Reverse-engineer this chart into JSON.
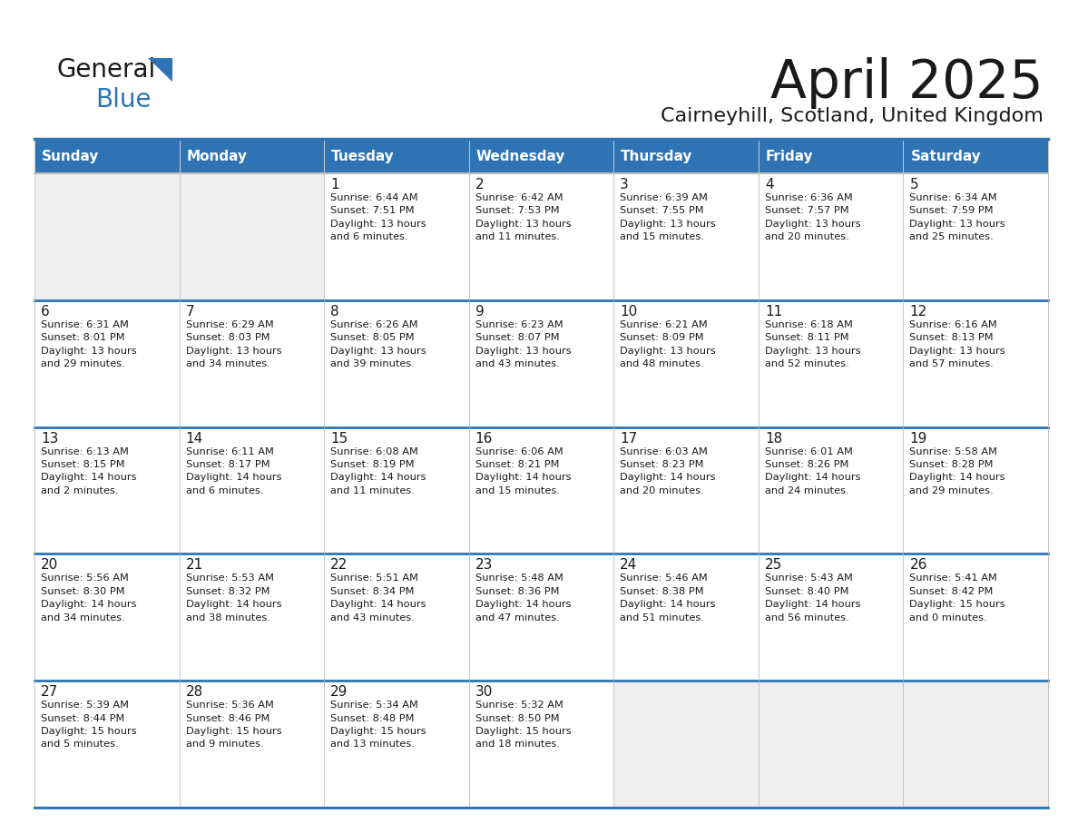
{
  "title": "April 2025",
  "subtitle": "Cairneyhill, Scotland, United Kingdom",
  "header_bg_color": "#2E74B5",
  "header_text_color": "#FFFFFF",
  "cell_bg_white": "#FFFFFF",
  "cell_bg_gray": "#EFEFEF",
  "border_color_dark": "#2E74B5",
  "border_color_light": "#CCCCCC",
  "text_color": "#1a1a1a",
  "days_of_week": [
    "Sunday",
    "Monday",
    "Tuesday",
    "Wednesday",
    "Thursday",
    "Friday",
    "Saturday"
  ],
  "calendar_data": [
    [
      {
        "day": "",
        "info": "",
        "empty": true
      },
      {
        "day": "",
        "info": "",
        "empty": true
      },
      {
        "day": "1",
        "info": "Sunrise: 6:44 AM\nSunset: 7:51 PM\nDaylight: 13 hours\nand 6 minutes.",
        "empty": false
      },
      {
        "day": "2",
        "info": "Sunrise: 6:42 AM\nSunset: 7:53 PM\nDaylight: 13 hours\nand 11 minutes.",
        "empty": false
      },
      {
        "day": "3",
        "info": "Sunrise: 6:39 AM\nSunset: 7:55 PM\nDaylight: 13 hours\nand 15 minutes.",
        "empty": false
      },
      {
        "day": "4",
        "info": "Sunrise: 6:36 AM\nSunset: 7:57 PM\nDaylight: 13 hours\nand 20 minutes.",
        "empty": false
      },
      {
        "day": "5",
        "info": "Sunrise: 6:34 AM\nSunset: 7:59 PM\nDaylight: 13 hours\nand 25 minutes.",
        "empty": false
      }
    ],
    [
      {
        "day": "6",
        "info": "Sunrise: 6:31 AM\nSunset: 8:01 PM\nDaylight: 13 hours\nand 29 minutes.",
        "empty": false
      },
      {
        "day": "7",
        "info": "Sunrise: 6:29 AM\nSunset: 8:03 PM\nDaylight: 13 hours\nand 34 minutes.",
        "empty": false
      },
      {
        "day": "8",
        "info": "Sunrise: 6:26 AM\nSunset: 8:05 PM\nDaylight: 13 hours\nand 39 minutes.",
        "empty": false
      },
      {
        "day": "9",
        "info": "Sunrise: 6:23 AM\nSunset: 8:07 PM\nDaylight: 13 hours\nand 43 minutes.",
        "empty": false
      },
      {
        "day": "10",
        "info": "Sunrise: 6:21 AM\nSunset: 8:09 PM\nDaylight: 13 hours\nand 48 minutes.",
        "empty": false
      },
      {
        "day": "11",
        "info": "Sunrise: 6:18 AM\nSunset: 8:11 PM\nDaylight: 13 hours\nand 52 minutes.",
        "empty": false
      },
      {
        "day": "12",
        "info": "Sunrise: 6:16 AM\nSunset: 8:13 PM\nDaylight: 13 hours\nand 57 minutes.",
        "empty": false
      }
    ],
    [
      {
        "day": "13",
        "info": "Sunrise: 6:13 AM\nSunset: 8:15 PM\nDaylight: 14 hours\nand 2 minutes.",
        "empty": false
      },
      {
        "day": "14",
        "info": "Sunrise: 6:11 AM\nSunset: 8:17 PM\nDaylight: 14 hours\nand 6 minutes.",
        "empty": false
      },
      {
        "day": "15",
        "info": "Sunrise: 6:08 AM\nSunset: 8:19 PM\nDaylight: 14 hours\nand 11 minutes.",
        "empty": false
      },
      {
        "day": "16",
        "info": "Sunrise: 6:06 AM\nSunset: 8:21 PM\nDaylight: 14 hours\nand 15 minutes.",
        "empty": false
      },
      {
        "day": "17",
        "info": "Sunrise: 6:03 AM\nSunset: 8:23 PM\nDaylight: 14 hours\nand 20 minutes.",
        "empty": false
      },
      {
        "day": "18",
        "info": "Sunrise: 6:01 AM\nSunset: 8:26 PM\nDaylight: 14 hours\nand 24 minutes.",
        "empty": false
      },
      {
        "day": "19",
        "info": "Sunrise: 5:58 AM\nSunset: 8:28 PM\nDaylight: 14 hours\nand 29 minutes.",
        "empty": false
      }
    ],
    [
      {
        "day": "20",
        "info": "Sunrise: 5:56 AM\nSunset: 8:30 PM\nDaylight: 14 hours\nand 34 minutes.",
        "empty": false
      },
      {
        "day": "21",
        "info": "Sunrise: 5:53 AM\nSunset: 8:32 PM\nDaylight: 14 hours\nand 38 minutes.",
        "empty": false
      },
      {
        "day": "22",
        "info": "Sunrise: 5:51 AM\nSunset: 8:34 PM\nDaylight: 14 hours\nand 43 minutes.",
        "empty": false
      },
      {
        "day": "23",
        "info": "Sunrise: 5:48 AM\nSunset: 8:36 PM\nDaylight: 14 hours\nand 47 minutes.",
        "empty": false
      },
      {
        "day": "24",
        "info": "Sunrise: 5:46 AM\nSunset: 8:38 PM\nDaylight: 14 hours\nand 51 minutes.",
        "empty": false
      },
      {
        "day": "25",
        "info": "Sunrise: 5:43 AM\nSunset: 8:40 PM\nDaylight: 14 hours\nand 56 minutes.",
        "empty": false
      },
      {
        "day": "26",
        "info": "Sunrise: 5:41 AM\nSunset: 8:42 PM\nDaylight: 15 hours\nand 0 minutes.",
        "empty": false
      }
    ],
    [
      {
        "day": "27",
        "info": "Sunrise: 5:39 AM\nSunset: 8:44 PM\nDaylight: 15 hours\nand 5 minutes.",
        "empty": false
      },
      {
        "day": "28",
        "info": "Sunrise: 5:36 AM\nSunset: 8:46 PM\nDaylight: 15 hours\nand 9 minutes.",
        "empty": false
      },
      {
        "day": "29",
        "info": "Sunrise: 5:34 AM\nSunset: 8:48 PM\nDaylight: 15 hours\nand 13 minutes.",
        "empty": false
      },
      {
        "day": "30",
        "info": "Sunrise: 5:32 AM\nSunset: 8:50 PM\nDaylight: 15 hours\nand 18 minutes.",
        "empty": false
      },
      {
        "day": "",
        "info": "",
        "empty": true
      },
      {
        "day": "",
        "info": "",
        "empty": true
      },
      {
        "day": "",
        "info": "",
        "empty": true
      }
    ]
  ]
}
